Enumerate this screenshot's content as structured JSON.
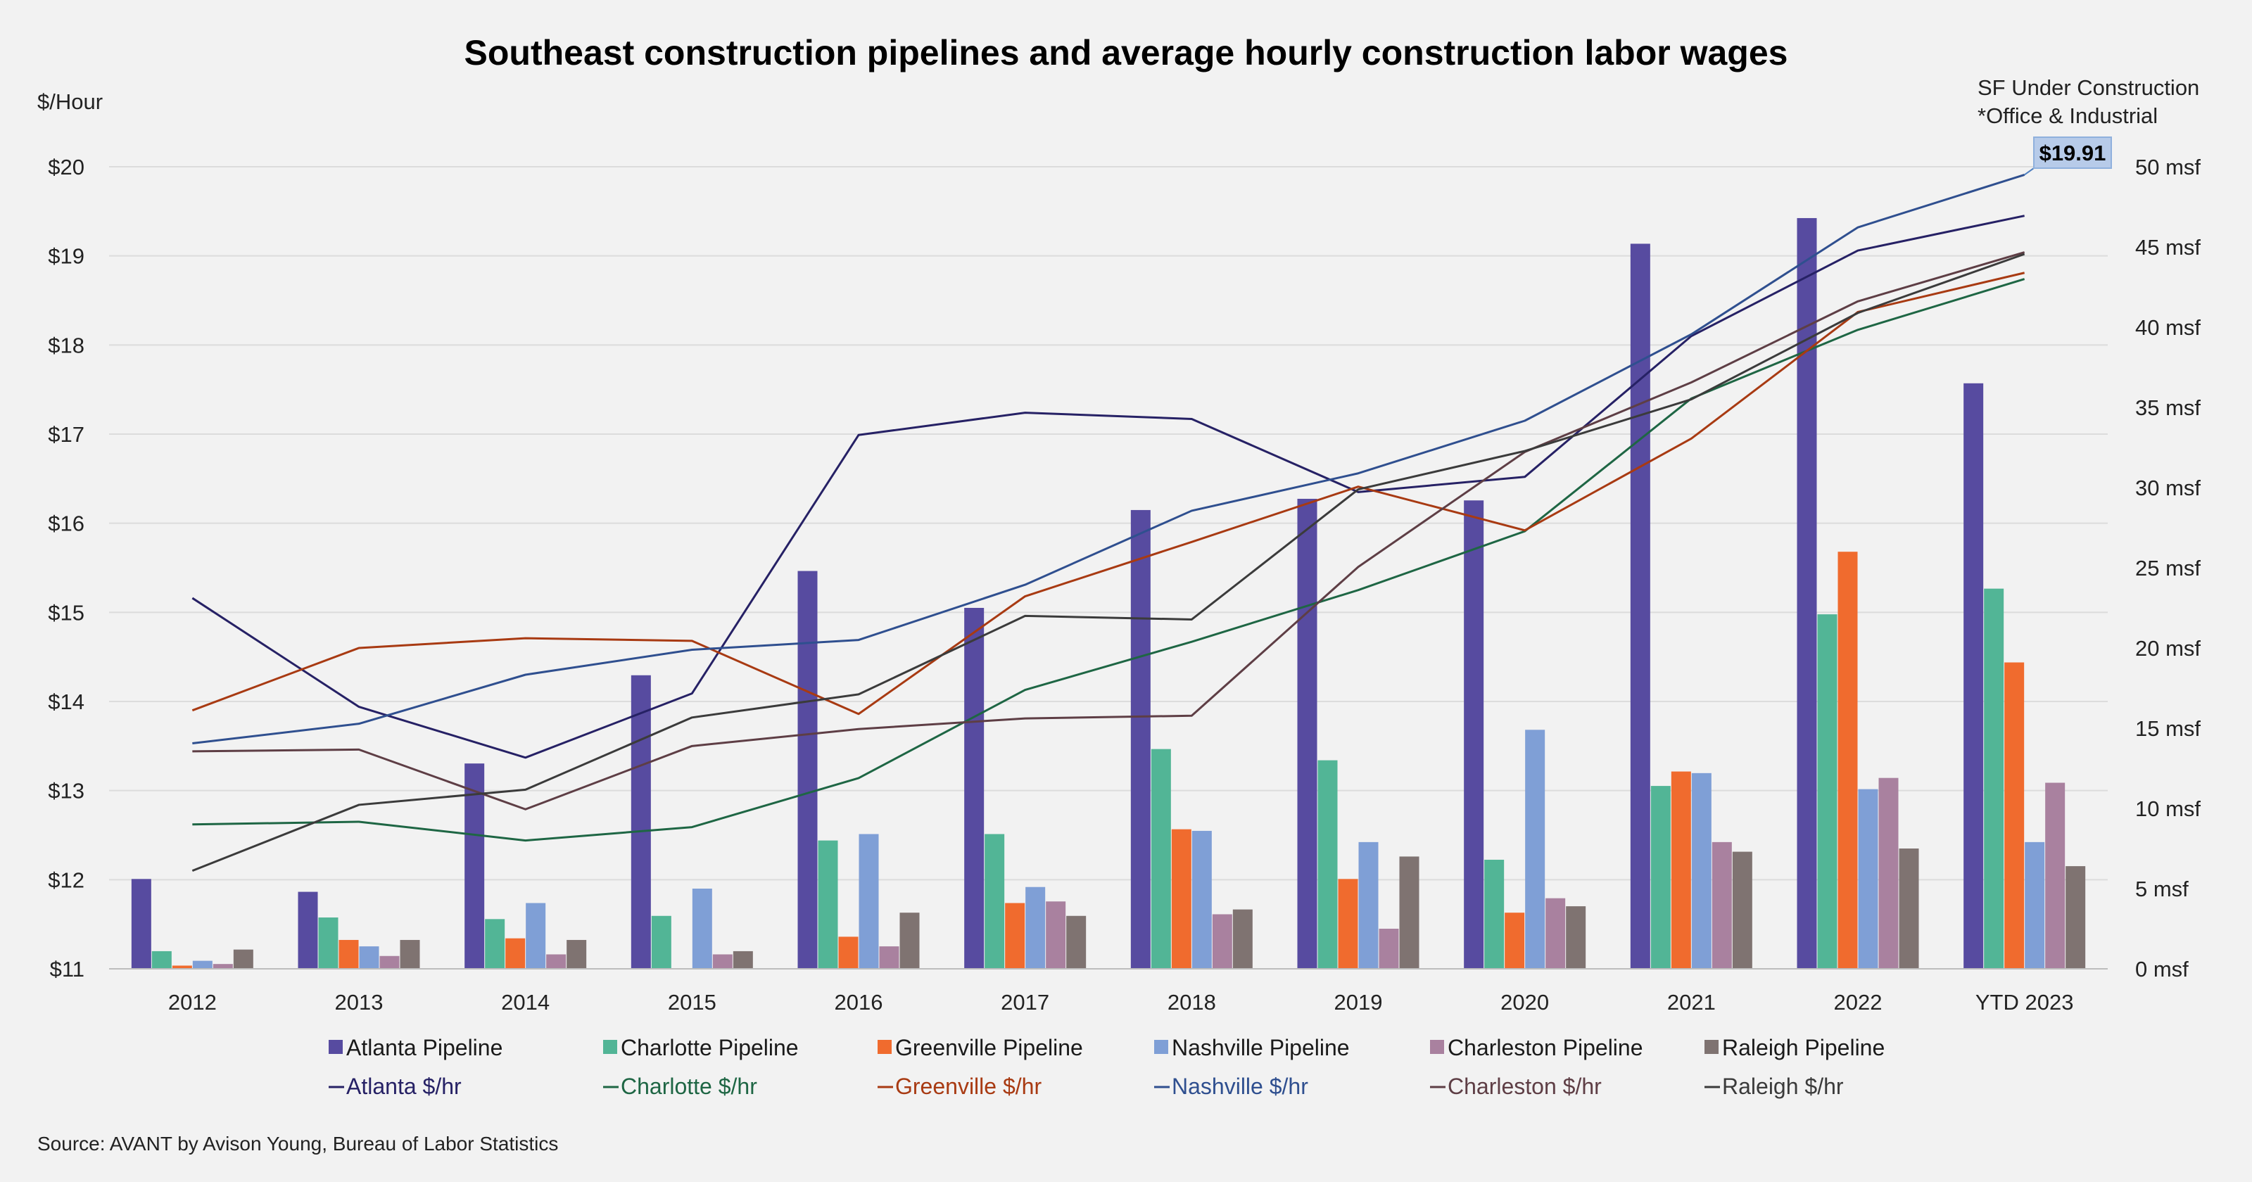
{
  "chart_data": {
    "type": "bar+line",
    "title": "Southeast construction pipelines and average hourly construction labor wages",
    "left_axis_label": "$/Hour",
    "right_axis_label_line1": "SF Under Construction",
    "right_axis_label_line2": "*Office & Industrial",
    "source": "Source: AVANT by Avison Young, Bureau of Labor Statistics",
    "categories": [
      "2012",
      "2013",
      "2014",
      "2015",
      "2016",
      "2017",
      "2018",
      "2019",
      "2020",
      "2021",
      "2022",
      "YTD 2023"
    ],
    "left_axis": {
      "min": 11,
      "max": 20,
      "ticks": [
        11,
        12,
        13,
        14,
        15,
        16,
        17,
        18,
        19,
        20
      ],
      "tick_labels": [
        "$11",
        "$12",
        "$13",
        "$14",
        "$15",
        "$16",
        "$17",
        "$18",
        "$19",
        "$20"
      ]
    },
    "right_axis": {
      "min": 0,
      "max": 50,
      "ticks": [
        0,
        5,
        10,
        15,
        20,
        25,
        30,
        35,
        40,
        45,
        50
      ],
      "tick_labels": [
        "0 msf",
        "5 msf",
        "10 msf",
        "15 msf",
        "20 msf",
        "25 msf",
        "30 msf",
        "35 msf",
        "40 msf",
        "45 msf",
        "50 msf"
      ]
    },
    "bar_series": [
      {
        "name": "Atlanta Pipeline",
        "color": "#574ba0",
        "values": [
          5.6,
          4.8,
          12.8,
          18.3,
          24.8,
          22.5,
          28.6,
          29.3,
          29.2,
          45.2,
          46.8,
          36.5
        ]
      },
      {
        "name": "Charlotte Pipeline",
        "color": "#52b596",
        "values": [
          1.1,
          3.2,
          3.1,
          3.3,
          8.0,
          8.4,
          13.7,
          13.0,
          6.8,
          11.4,
          22.1,
          23.7
        ]
      },
      {
        "name": "Greenville Pipeline",
        "color": "#f06b2e",
        "values": [
          0.2,
          1.8,
          1.9,
          0.0,
          2.0,
          4.1,
          8.7,
          5.6,
          3.5,
          12.3,
          26.0,
          19.1
        ]
      },
      {
        "name": "Nashville Pipeline",
        "color": "#7f9fd6",
        "values": [
          0.5,
          1.4,
          4.1,
          5.0,
          8.4,
          5.1,
          8.6,
          7.9,
          14.9,
          12.2,
          11.2,
          7.9
        ]
      },
      {
        "name": "Charleston Pipeline",
        "color": "#a9819f",
        "values": [
          0.3,
          0.8,
          0.9,
          0.9,
          1.4,
          4.2,
          3.4,
          2.5,
          4.4,
          7.9,
          11.9,
          11.6
        ]
      },
      {
        "name": "Raleigh Pipeline",
        "color": "#7f7371",
        "values": [
          1.2,
          1.8,
          1.8,
          1.1,
          3.5,
          3.3,
          3.7,
          7.0,
          3.9,
          7.3,
          7.5,
          6.4
        ]
      }
    ],
    "line_series": [
      {
        "name": "Atlanta $/hr",
        "color": "#262165",
        "values": [
          15.16,
          13.94,
          13.37,
          14.09,
          16.99,
          17.24,
          17.17,
          16.35,
          16.52,
          18.1,
          19.06,
          19.45
        ]
      },
      {
        "name": "Charlotte $/hr",
        "color": "#1e6644",
        "values": [
          12.62,
          12.65,
          12.44,
          12.59,
          13.14,
          14.13,
          14.67,
          15.25,
          15.91,
          17.4,
          18.17,
          18.74
        ]
      },
      {
        "name": "Greenville $/hr",
        "color": "#a83a12",
        "values": [
          13.9,
          14.6,
          14.71,
          14.68,
          13.86,
          15.18,
          15.79,
          16.41,
          15.92,
          16.95,
          18.37,
          18.81
        ]
      },
      {
        "name": "Nashville $/hr",
        "color": "#2f4f8f",
        "values": [
          13.53,
          13.75,
          14.3,
          14.58,
          14.69,
          15.31,
          16.14,
          16.56,
          17.15,
          18.12,
          19.32,
          19.91
        ]
      },
      {
        "name": "Charleston $/hr",
        "color": "#5e3e45",
        "values": [
          13.44,
          13.46,
          12.79,
          13.5,
          13.69,
          13.81,
          13.84,
          15.51,
          16.8,
          17.58,
          18.49,
          19.04
        ]
      },
      {
        "name": "Raleigh $/hr",
        "color": "#3b3b3b",
        "values": [
          12.1,
          12.84,
          13.01,
          13.82,
          14.08,
          14.96,
          14.92,
          16.38,
          16.81,
          17.39,
          18.36,
          19.02
        ]
      }
    ],
    "callout": {
      "series": "Nashville $/hr",
      "category": "YTD 2023",
      "label": "$19.91"
    },
    "legend_position": "bottom"
  }
}
